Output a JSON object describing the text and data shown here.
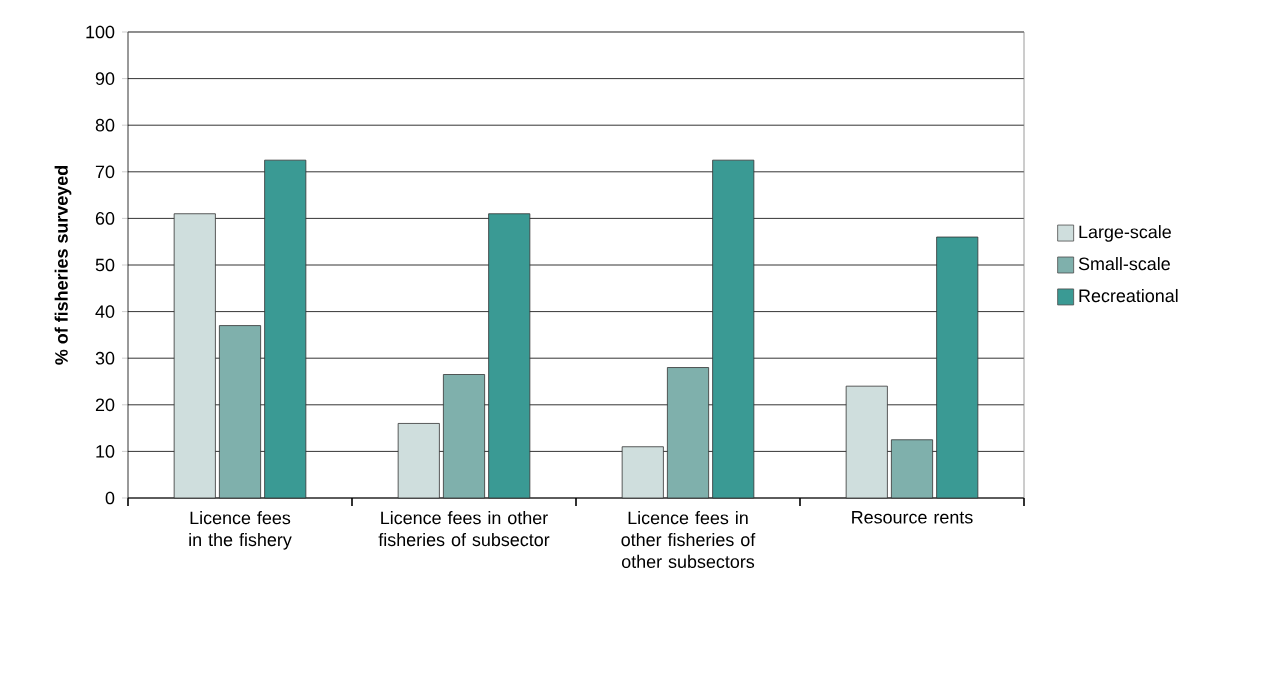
{
  "chart_data": {
    "type": "bar",
    "ylabel": "% of fisheries surveyed",
    "categories": [
      "Licence fees in the fishery",
      "Licence fees in other fisheries of subsector",
      "Licence fees in other fisheries of other subsectors",
      "Resource rents"
    ],
    "series": [
      {
        "name": "Large-scale",
        "color": "#cfdedd",
        "values": [
          61,
          16,
          11,
          24
        ]
      },
      {
        "name": "Small-scale",
        "color": "#7fb0ac",
        "values": [
          37,
          26.5,
          28,
          12.5
        ]
      },
      {
        "name": "Recreational",
        "color": "#3a9a94",
        "values": [
          72.5,
          61,
          72.5,
          56
        ]
      }
    ],
    "ylim": [
      0,
      100
    ],
    "yticks": [
      0,
      10,
      20,
      30,
      40,
      50,
      60,
      70,
      80,
      90,
      100
    ],
    "grid": "y",
    "legend": "right"
  }
}
